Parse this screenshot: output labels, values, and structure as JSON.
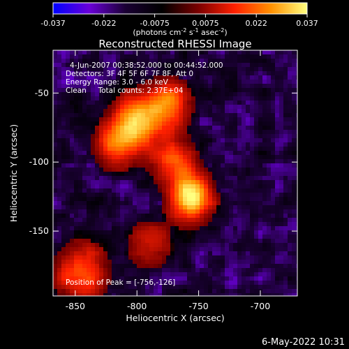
{
  "colorbar": {
    "ticks": [
      "-0.037",
      "-0.022",
      "-0.0075",
      "0.0075",
      "0.022",
      "0.037"
    ],
    "units": "(photons cm",
    "units_exp1": "-2",
    "units_mid": " s",
    "units_exp2": "-1",
    "units_mid2": " asec",
    "units_exp3": "-2",
    "units_end": ")",
    "colors": [
      "#0000ff",
      "#6a00d8",
      "#1a0033",
      "#000000",
      "#7a0000",
      "#ff2000",
      "#ff9000",
      "#ffff80"
    ]
  },
  "chart_data": {
    "type": "heatmap",
    "title": "Reconstructed RHESSI Image",
    "xlabel": "Heliocentric X (arcsec)",
    "ylabel": "Heliocentric Y (arcsec)",
    "xlim": [
      -868,
      -670
    ],
    "ylim": [
      -197,
      -19
    ],
    "xticks": [
      -850,
      -800,
      -750,
      -700
    ],
    "yticks": [
      -50,
      -100,
      -150
    ],
    "xtick_labels": [
      "-850",
      "-800",
      "-750",
      "-700"
    ],
    "ytick_labels": [
      "-50",
      "-100",
      "-150"
    ],
    "annotations": [
      "4-Jun-2007 00:38:52.000 to 00:44:52.000",
      "Detectors: 3F 4F 5F 6F 7F 8F, Att 0",
      "Energy Range: 3.0 - 6.0 keV",
      "Clean     Total counts: 2.37E+04"
    ],
    "peak_label": "Position of Peak = [-756,-126]",
    "peak": [
      -756,
      -126
    ],
    "sources": [
      {
        "x": -756,
        "y": -126,
        "amp": 1.0,
        "sigma": 11
      },
      {
        "x": -800,
        "y": -72,
        "amp": 0.82,
        "sigma": 13
      },
      {
        "x": -775,
        "y": -58,
        "amp": 0.62,
        "sigma": 12
      },
      {
        "x": -818,
        "y": -88,
        "amp": 0.55,
        "sigma": 11
      },
      {
        "x": -770,
        "y": -100,
        "amp": 0.5,
        "sigma": 12
      },
      {
        "x": -845,
        "y": -180,
        "amp": 0.55,
        "sigma": 14
      },
      {
        "x": -790,
        "y": -160,
        "amp": 0.35,
        "sigma": 12
      }
    ]
  },
  "timestamp": "6-May-2022 10:31"
}
